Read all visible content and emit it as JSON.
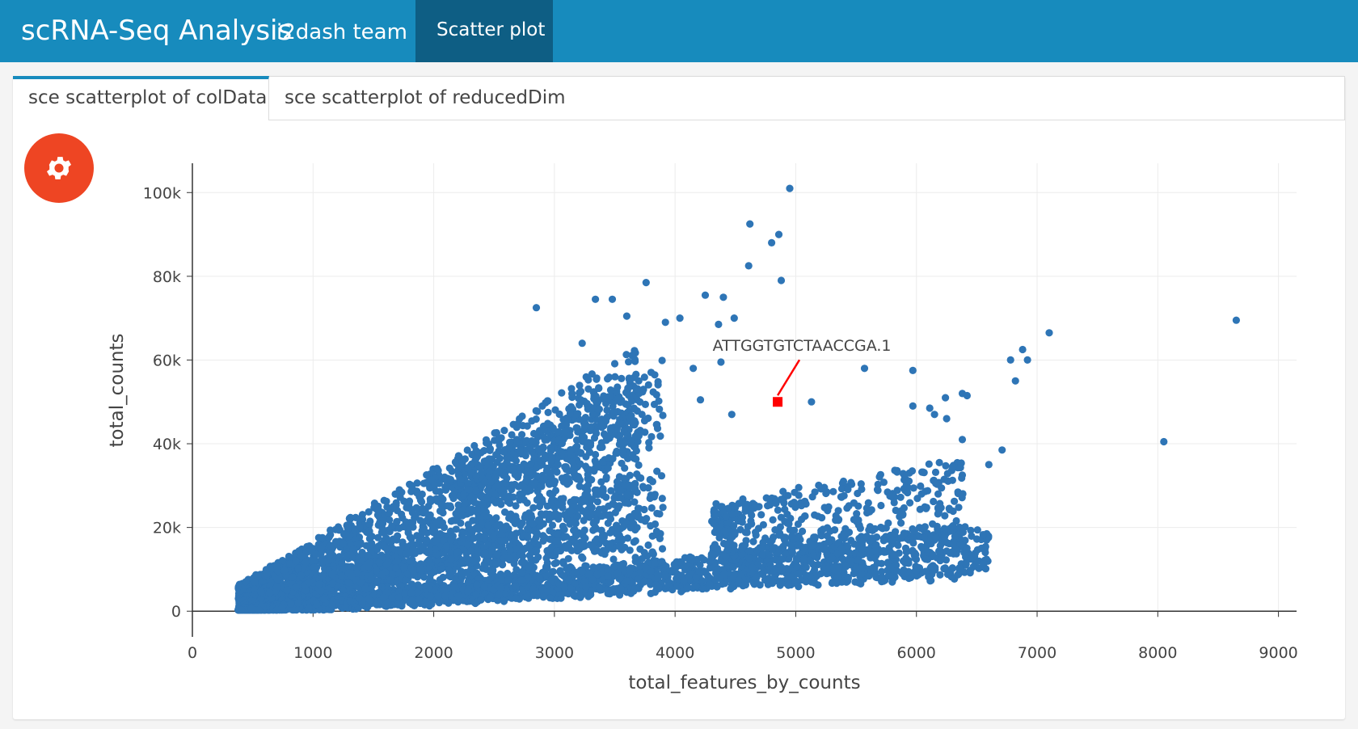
{
  "header": {
    "title": "scRNA-Seq Analysis",
    "team": "i2dash team",
    "nav_tab": "Scatter plot"
  },
  "tabs": [
    {
      "label": "sce scatterplot of colData",
      "active": true
    },
    {
      "label": "sce scatterplot of reducedDim",
      "active": false
    }
  ],
  "settings_button": {
    "icon": "gear-icon",
    "color": "#ee4523"
  },
  "chart_data": {
    "type": "scatter",
    "title": "",
    "xlabel": "total_features_by_counts",
    "ylabel": "total_counts",
    "xlim": [
      0,
      9150
    ],
    "ylim": [
      -1500,
      107000
    ],
    "xticks": [
      0,
      1000,
      2000,
      3000,
      4000,
      5000,
      6000,
      7000,
      8000,
      9000
    ],
    "xtick_labels": [
      "0",
      "1000",
      "2000",
      "3000",
      "4000",
      "5000",
      "6000",
      "7000",
      "8000",
      "9000"
    ],
    "yticks": [
      0,
      20000,
      40000,
      60000,
      80000,
      100000
    ],
    "ytick_labels": [
      "0",
      "20k",
      "40k",
      "60k",
      "80k",
      "100k"
    ],
    "grid": true,
    "point_color": "#2e75b6",
    "highlight_color": "#ff0000",
    "highlight": {
      "x": 4850,
      "y": 50000,
      "label": "ATTGGTGTCTAACCGA.1"
    },
    "outliers": [
      {
        "x": 4950,
        "y": 101000
      },
      {
        "x": 4620,
        "y": 92500
      },
      {
        "x": 4860,
        "y": 90000
      },
      {
        "x": 4800,
        "y": 88000
      },
      {
        "x": 4610,
        "y": 82500
      },
      {
        "x": 4880,
        "y": 79000
      },
      {
        "x": 8650,
        "y": 69500
      },
      {
        "x": 7100,
        "y": 66500
      },
      {
        "x": 2850,
        "y": 72500
      },
      {
        "x": 3760,
        "y": 78500
      },
      {
        "x": 6880,
        "y": 62500
      },
      {
        "x": 6780,
        "y": 60000
      },
      {
        "x": 6920,
        "y": 60000
      },
      {
        "x": 6820,
        "y": 55000
      },
      {
        "x": 5570,
        "y": 58000
      },
      {
        "x": 5970,
        "y": 57500
      },
      {
        "x": 5130,
        "y": 50000
      },
      {
        "x": 8050,
        "y": 40500
      },
      {
        "x": 6710,
        "y": 38500
      },
      {
        "x": 6600,
        "y": 35000
      },
      {
        "x": 4250,
        "y": 75500
      },
      {
        "x": 4400,
        "y": 75000
      },
      {
        "x": 4360,
        "y": 68500
      },
      {
        "x": 4490,
        "y": 70000
      },
      {
        "x": 4210,
        "y": 50500
      },
      {
        "x": 4470,
        "y": 47000
      },
      {
        "x": 4380,
        "y": 59500
      },
      {
        "x": 4150,
        "y": 58000
      },
      {
        "x": 5970,
        "y": 49000
      },
      {
        "x": 6380,
        "y": 52000
      },
      {
        "x": 6420,
        "y": 51500
      },
      {
        "x": 6240,
        "y": 51000
      },
      {
        "x": 6110,
        "y": 48500
      },
      {
        "x": 6150,
        "y": 47000
      },
      {
        "x": 6250,
        "y": 46000
      },
      {
        "x": 6380,
        "y": 41000
      },
      {
        "x": 6300,
        "y": 34500
      },
      {
        "x": 6380,
        "y": 32500
      },
      {
        "x": 6190,
        "y": 35500
      },
      {
        "x": 6230,
        "y": 31500
      },
      {
        "x": 6180,
        "y": 28000
      },
      {
        "x": 6080,
        "y": 24500
      },
      {
        "x": 6180,
        "y": 24500
      },
      {
        "x": 6350,
        "y": 24800
      },
      {
        "x": 5070,
        "y": 15000
      },
      {
        "x": 3340,
        "y": 74500
      },
      {
        "x": 3480,
        "y": 74500
      },
      {
        "x": 3600,
        "y": 70500
      },
      {
        "x": 3920,
        "y": 69000
      },
      {
        "x": 4040,
        "y": 70000
      },
      {
        "x": 3230,
        "y": 64000
      }
    ],
    "clusters": [
      {
        "name": "",
        "x": [
          380,
          3700
        ],
        "y_slope": [
          4.8,
          17.5
        ],
        "n": 1700
      },
      {
        "name": "",
        "x": [
          400,
          3900
        ],
        "y_slope": [
          3.0,
          9.0
        ],
        "n": 1300
      },
      {
        "name": "",
        "x": [
          2200,
          3900
        ],
        "y_slope": [
          10.5,
          15.5
        ],
        "n": 420
      },
      {
        "name": "",
        "x": [
          380,
          6600
        ],
        "y_slope": [
          1.4,
          3.3
        ],
        "n": 2300
      },
      {
        "name": "",
        "x": [
          4300,
          6400
        ],
        "y_slope": [
          3.0,
          6.0
        ],
        "n": 420
      }
    ]
  }
}
